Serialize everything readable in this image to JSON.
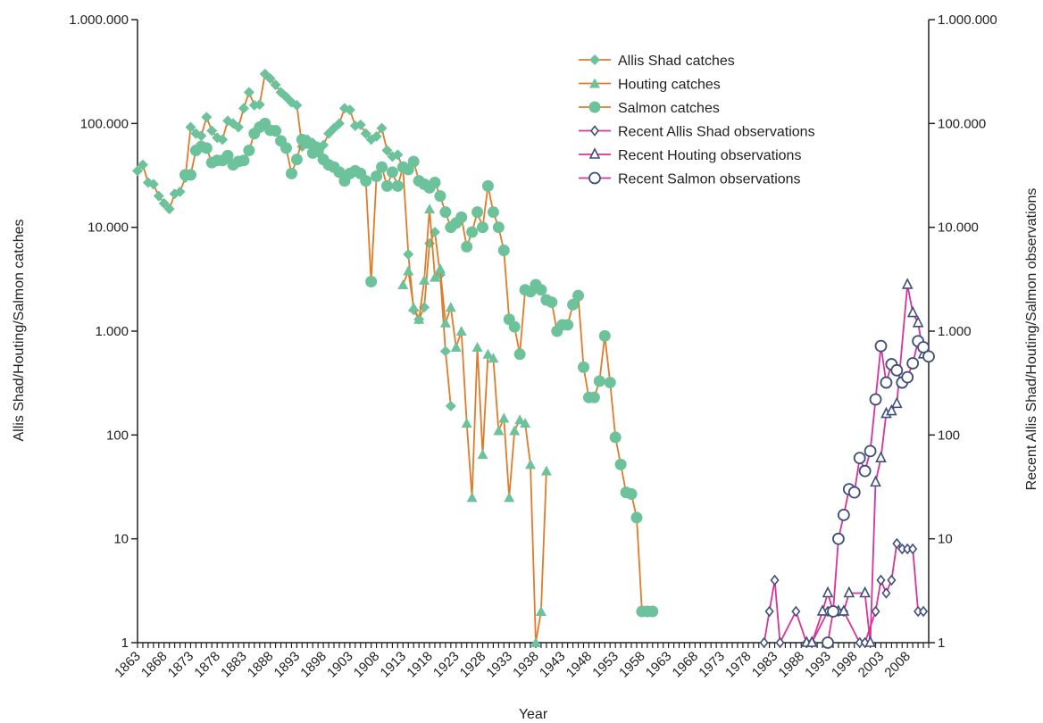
{
  "chart_data": {
    "type": "line",
    "xlabel": "Year",
    "ylabel_left": "Allis Shad/Houting/Salmon catches",
    "ylabel_right": "Recent Allis Shad/Houting/Salmon observations",
    "yscale": "log",
    "ylim": [
      1,
      1000000
    ],
    "xlim": [
      1863,
      2012
    ],
    "y_ticks": [
      1,
      10,
      100,
      1000,
      10000,
      100000,
      1000000
    ],
    "y_tick_labels": [
      "1",
      "10",
      "100",
      "1.000",
      "10.000",
      "100.000",
      "1.000.000"
    ],
    "x_tick_labels": [
      "1863",
      "1868",
      "1873",
      "1878",
      "1883",
      "1888",
      "1893",
      "1898",
      "1903",
      "1908",
      "1913",
      "1918",
      "1923",
      "1928",
      "1933",
      "1938",
      "1943",
      "1948",
      "1953",
      "1958",
      "1963",
      "1968",
      "1973",
      "1978",
      "1983",
      "1988",
      "1993",
      "1998",
      "2003",
      "2008"
    ],
    "legend_position": "top-right",
    "colors": {
      "catch_marker": "#6cc29a",
      "catch_line": "#e07b2a",
      "obs_line": "#d6339b",
      "obs_marker": "#3f4f7a",
      "axis": "#222222"
    },
    "series": [
      {
        "name": "Allis Shad catches",
        "marker": "diamond",
        "group": "catch",
        "points": [
          [
            1863,
            35000
          ],
          [
            1864,
            40000
          ],
          [
            1865,
            27000
          ],
          [
            1866,
            26000
          ],
          [
            1867,
            20000
          ],
          [
            1868,
            17000
          ],
          [
            1869,
            15000
          ],
          [
            1870,
            21000
          ],
          [
            1871,
            22000
          ],
          [
            1872,
            30000
          ],
          [
            1873,
            92000
          ],
          [
            1874,
            80000
          ],
          [
            1875,
            76000
          ],
          [
            1876,
            115000
          ],
          [
            1877,
            85000
          ],
          [
            1878,
            73000
          ],
          [
            1879,
            70000
          ],
          [
            1880,
            106000
          ],
          [
            1881,
            100000
          ],
          [
            1882,
            92000
          ],
          [
            1883,
            140000
          ],
          [
            1884,
            200000
          ],
          [
            1885,
            150000
          ],
          [
            1886,
            152000
          ],
          [
            1887,
            300000
          ],
          [
            1888,
            270000
          ],
          [
            1889,
            235000
          ],
          [
            1890,
            200000
          ],
          [
            1891,
            180000
          ],
          [
            1892,
            160000
          ],
          [
            1893,
            150000
          ],
          [
            1894,
            60000
          ],
          [
            1895,
            70000
          ],
          [
            1896,
            65000
          ],
          [
            1897,
            60000
          ],
          [
            1898,
            62000
          ],
          [
            1899,
            80000
          ],
          [
            1900,
            90000
          ],
          [
            1901,
            100000
          ],
          [
            1902,
            140000
          ],
          [
            1903,
            135000
          ],
          [
            1904,
            95000
          ],
          [
            1905,
            97000
          ],
          [
            1906,
            80000
          ],
          [
            1907,
            70000
          ],
          [
            1908,
            75000
          ],
          [
            1909,
            90000
          ],
          [
            1910,
            55000
          ],
          [
            1911,
            48000
          ],
          [
            1912,
            50000
          ],
          [
            1913,
            37000
          ],
          [
            1914,
            5500
          ],
          [
            1915,
            1600
          ],
          [
            1916,
            1300
          ],
          [
            1917,
            1700
          ],
          [
            1918,
            7000
          ],
          [
            1919,
            9000
          ],
          [
            1920,
            3500
          ],
          [
            1921,
            640
          ],
          [
            1922,
            190
          ]
        ]
      },
      {
        "name": "Houting catches",
        "marker": "triangle",
        "group": "catch",
        "points": [
          [
            1913,
            2800
          ],
          [
            1914,
            3800
          ],
          [
            1915,
            1700
          ],
          [
            1916,
            1300
          ],
          [
            1917,
            3100
          ],
          [
            1918,
            15000
          ],
          [
            1919,
            3300
          ],
          [
            1920,
            4000
          ],
          [
            1921,
            1200
          ],
          [
            1922,
            1700
          ],
          [
            1923,
            700
          ],
          [
            1924,
            1000
          ],
          [
            1925,
            130
          ],
          [
            1926,
            25
          ],
          [
            1927,
            700
          ],
          [
            1928,
            65
          ],
          [
            1929,
            600
          ],
          [
            1930,
            550
          ],
          [
            1931,
            110
          ],
          [
            1932,
            145
          ],
          [
            1933,
            25
          ],
          [
            1934,
            110
          ],
          [
            1935,
            140
          ],
          [
            1936,
            130
          ],
          [
            1937,
            52
          ],
          [
            1938,
            1
          ],
          [
            1939,
            2
          ],
          [
            1940,
            45
          ]
        ]
      },
      {
        "name": "Salmon catches",
        "marker": "circle",
        "group": "catch",
        "points": [
          [
            1872,
            32000
          ],
          [
            1873,
            32000
          ],
          [
            1874,
            55000
          ],
          [
            1875,
            60000
          ],
          [
            1876,
            58000
          ],
          [
            1877,
            42000
          ],
          [
            1878,
            44000
          ],
          [
            1879,
            44000
          ],
          [
            1880,
            49000
          ],
          [
            1881,
            40000
          ],
          [
            1882,
            43000
          ],
          [
            1883,
            44000
          ],
          [
            1884,
            55000
          ],
          [
            1885,
            80000
          ],
          [
            1886,
            92000
          ],
          [
            1887,
            100000
          ],
          [
            1888,
            86000
          ],
          [
            1889,
            85000
          ],
          [
            1890,
            68000
          ],
          [
            1891,
            58000
          ],
          [
            1892,
            33000
          ],
          [
            1893,
            45000
          ],
          [
            1894,
            70000
          ],
          [
            1895,
            65000
          ],
          [
            1896,
            52000
          ],
          [
            1897,
            54000
          ],
          [
            1898,
            45000
          ],
          [
            1899,
            40000
          ],
          [
            1900,
            38000
          ],
          [
            1901,
            34000
          ],
          [
            1902,
            28000
          ],
          [
            1903,
            33000
          ],
          [
            1904,
            35000
          ],
          [
            1905,
            33000
          ],
          [
            1906,
            28000
          ],
          [
            1907,
            3000
          ],
          [
            1908,
            31000
          ],
          [
            1909,
            38000
          ],
          [
            1910,
            25000
          ],
          [
            1911,
            34000
          ],
          [
            1912,
            25000
          ],
          [
            1913,
            38000
          ],
          [
            1914,
            36000
          ],
          [
            1915,
            43000
          ],
          [
            1916,
            28000
          ],
          [
            1917,
            26000
          ],
          [
            1918,
            24000
          ],
          [
            1919,
            27000
          ],
          [
            1920,
            20000
          ],
          [
            1921,
            14000
          ],
          [
            1922,
            10000
          ],
          [
            1923,
            11000
          ],
          [
            1924,
            12500
          ],
          [
            1925,
            6500
          ],
          [
            1926,
            9000
          ],
          [
            1927,
            14000
          ],
          [
            1928,
            10000
          ],
          [
            1929,
            25000
          ],
          [
            1930,
            14000
          ],
          [
            1931,
            10000
          ],
          [
            1932,
            6000
          ],
          [
            1933,
            1300
          ],
          [
            1934,
            1100
          ],
          [
            1935,
            600
          ],
          [
            1936,
            2500
          ],
          [
            1937,
            2400
          ],
          [
            1938,
            2800
          ],
          [
            1939,
            2500
          ],
          [
            1940,
            2000
          ],
          [
            1941,
            1900
          ],
          [
            1942,
            1000
          ],
          [
            1943,
            1150
          ],
          [
            1944,
            1150
          ],
          [
            1945,
            1800
          ],
          [
            1946,
            2200
          ],
          [
            1947,
            450
          ],
          [
            1948,
            230
          ],
          [
            1949,
            230
          ],
          [
            1950,
            330
          ],
          [
            1951,
            900
          ],
          [
            1952,
            320
          ],
          [
            1953,
            95
          ],
          [
            1954,
            52
          ],
          [
            1955,
            28
          ],
          [
            1956,
            27
          ],
          [
            1957,
            16
          ],
          [
            1958,
            2
          ],
          [
            1959,
            2
          ],
          [
            1960,
            2
          ]
        ]
      },
      {
        "name": "Recent Allis Shad observations",
        "marker": "open-diamond",
        "group": "obs",
        "points": [
          [
            1981,
            1
          ],
          [
            1982,
            2
          ],
          [
            1983,
            4
          ],
          [
            1984,
            1
          ],
          [
            1987,
            2
          ],
          [
            1989,
            1
          ],
          [
            1990,
            1
          ],
          [
            1993,
            2
          ],
          [
            1994,
            2
          ],
          [
            1995,
            2
          ],
          [
            1996,
            2
          ],
          [
            1999,
            1
          ],
          [
            2000,
            1
          ],
          [
            2002,
            2
          ],
          [
            2003,
            4
          ],
          [
            2004,
            3
          ],
          [
            2005,
            4
          ],
          [
            2006,
            9
          ],
          [
            2007,
            8
          ],
          [
            2008,
            8
          ],
          [
            2009,
            8
          ],
          [
            2010,
            2
          ],
          [
            2011,
            2
          ]
        ]
      },
      {
        "name": "Recent Houting observations",
        "marker": "open-triangle",
        "group": "obs",
        "points": [
          [
            1989,
            1
          ],
          [
            1990,
            1
          ],
          [
            1992,
            2
          ],
          [
            1993,
            3
          ],
          [
            1994,
            2
          ],
          [
            1995,
            2
          ],
          [
            1996,
            2
          ],
          [
            1997,
            3
          ],
          [
            2000,
            3
          ],
          [
            2001,
            1
          ],
          [
            2002,
            35
          ],
          [
            2003,
            60
          ],
          [
            2004,
            160
          ],
          [
            2005,
            170
          ],
          [
            2006,
            200
          ],
          [
            2008,
            2800
          ],
          [
            2009,
            1500
          ],
          [
            2010,
            1200
          ],
          [
            2011,
            600
          ]
        ]
      },
      {
        "name": "Recent Salmon observations",
        "marker": "open-circle",
        "group": "obs",
        "points": [
          [
            1993,
            1
          ],
          [
            1994,
            2
          ],
          [
            1995,
            10
          ],
          [
            1996,
            17
          ],
          [
            1997,
            30
          ],
          [
            1998,
            28
          ],
          [
            1999,
            60
          ],
          [
            2000,
            45
          ],
          [
            2001,
            70
          ],
          [
            2002,
            220
          ],
          [
            2003,
            720
          ],
          [
            2004,
            320
          ],
          [
            2005,
            480
          ],
          [
            2006,
            420
          ],
          [
            2007,
            320
          ],
          [
            2008,
            360
          ],
          [
            2009,
            490
          ],
          [
            2010,
            800
          ],
          [
            2011,
            700
          ],
          [
            2012,
            570
          ]
        ]
      }
    ]
  }
}
